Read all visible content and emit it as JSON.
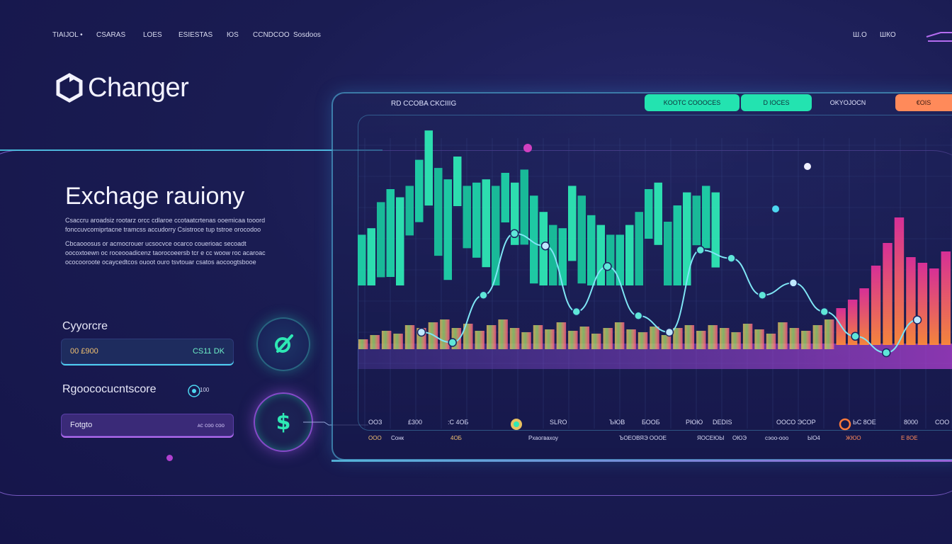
{
  "nav": {
    "items": [
      "TIAIJOL •",
      "CSARAS",
      "LOES",
      "ESIESTAS",
      "ЮS",
      "CCNDCOO",
      "Sosdoos"
    ]
  },
  "top_right": {
    "items": [
      "Ш.О",
      "ШКО"
    ]
  },
  "brand": {
    "name": "Changer"
  },
  "hero": {
    "title": "Exchage rauiony",
    "paragraphs": [
      "Csaccru aroadsiz rootarz orcc cdlaroe ccotaatcrtenas ooemicaa tooord",
      "fonccuvcomiprtacne tramcss accudorry Csistroce tup tstroe orocodoo",
      "Cbcaooosus or acmocrouer              ucsocvce ocarco couerioac secoadt",
      "oocoxtoewn oc roceooadicenz taorocoeersb tcr e cc woow roc acaroac",
      "ococooroote  ocaycedtcos  ouoot ouro tsvtouar  csatos aocoogtsbooe"
    ]
  },
  "form": {
    "label1": "Cyyorcre",
    "field1_left": "00 £900",
    "field1_right": "CS11 DK",
    "label2": "Rgoococucntscore",
    "tag2": "100",
    "field2_left": "Fotgto",
    "field2_right": "ᴀᴄ ᴄᴏᴏ ᴄᴏᴏ"
  },
  "chart_panel": {
    "title": "RD CCOBA CKCIIIG",
    "pills": [
      "KOOTC COOOCES",
      "D IOCES",
      "OKYOJOCN",
      "€OIS"
    ]
  },
  "axis": {
    "row1": [
      "ООЗ",
      "£300",
      ":С 4ОБ",
      "SLRO",
      "ЪЮВ",
      "БООБ",
      "РЮЮ",
      "DEDIS",
      "ООСО ЭСОР",
      "ЬС 8ОЕ",
      "8000",
      "СОО"
    ],
    "row2": [
      "ООО",
      "Сонк",
      "4ОБ",
      "Рхаогвахоу",
      "ЪОЕОВЯЭ ОООЕ",
      "ЯОСЕЮЫ",
      "ОЮЭ",
      "сэоо-ооо",
      "ЫО4",
      "ЖЮО",
      "Е 8ОЕ"
    ]
  },
  "colors": {
    "green": "#23e3b0",
    "cyan": "#4dd7f0",
    "purple": "#b46cf0",
    "orange": "#ff8a5a",
    "magenta": "#e0309a",
    "background": "#1a1c52"
  },
  "icons": [
    "logo-mark-icon",
    "menu-icon",
    "leaf-icon",
    "dollar-icon",
    "coin-icon"
  ],
  "chart_data": {
    "type": "bar",
    "series": [
      {
        "values": [
          32,
          36,
          52,
          60,
          55,
          62,
          78,
          96,
          73,
          66,
          80,
          62,
          64,
          66,
          62,
          70,
          64,
          72,
          56,
          46,
          38,
          36,
          62,
          56,
          44,
          38,
          32,
          32,
          38,
          46,
          60,
          64,
          40,
          50,
          58,
          56,
          62,
          58
        ]
      },
      {
        "values": [
          4,
          7,
          10,
          8,
          14,
          12,
          16,
          18,
          12,
          15,
          10,
          14,
          18,
          12,
          9,
          14,
          11,
          16,
          10,
          13,
          8,
          12,
          16,
          11,
          9,
          13,
          7,
          12,
          14,
          10,
          14,
          12,
          9,
          15,
          11,
          8,
          16,
          12,
          10,
          14,
          18,
          26,
          32,
          40,
          56,
          72,
          90,
          62,
          58,
          54,
          66
        ]
      },
      {
        "values": [
          40,
          35,
          58,
          88,
          82,
          50,
          72,
          48,
          40,
          80,
          76,
          58,
          64,
          50,
          38,
          30,
          46
        ]
      }
    ]
  }
}
